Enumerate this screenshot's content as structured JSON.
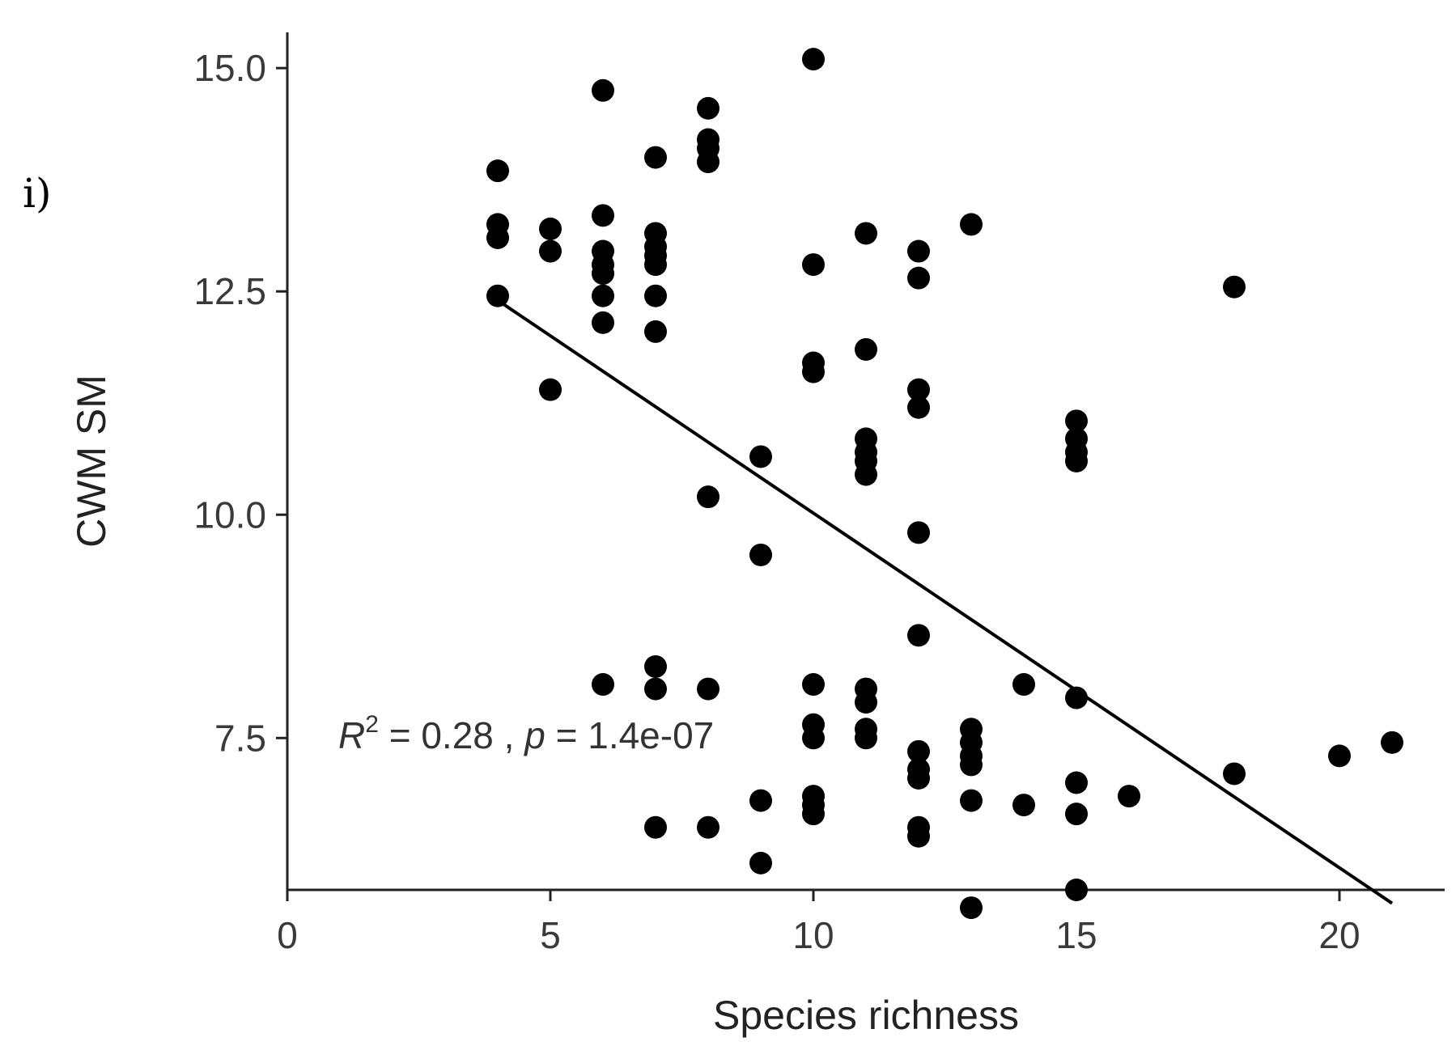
{
  "panel_label": "i)",
  "chart_data": {
    "type": "scatter",
    "xlabel": "Species richness",
    "ylabel": "CWM SM",
    "xlim": [
      0,
      22
    ],
    "ylim": [
      5.8,
      15.4
    ],
    "xticks": [
      0,
      5,
      10,
      15,
      20
    ],
    "xtick_labels": [
      "0",
      "5",
      "10",
      "15",
      "20"
    ],
    "yticks": [
      7.5,
      10.0,
      12.5,
      15.0
    ],
    "ytick_labels": [
      "7.5",
      "10.0",
      "12.5",
      "15.0"
    ],
    "grid": false,
    "points": [
      [
        4,
        13.85
      ],
      [
        4,
        13.25
      ],
      [
        4,
        13.1
      ],
      [
        4,
        12.45
      ],
      [
        5,
        13.2
      ],
      [
        5,
        12.95
      ],
      [
        5,
        11.4
      ],
      [
        6,
        14.75
      ],
      [
        6,
        13.35
      ],
      [
        6,
        12.95
      ],
      [
        6,
        12.8
      ],
      [
        6,
        12.7
      ],
      [
        6,
        12.45
      ],
      [
        6,
        12.15
      ],
      [
        6,
        8.1
      ],
      [
        7,
        14.0
      ],
      [
        7,
        13.15
      ],
      [
        7,
        13.0
      ],
      [
        7,
        12.9
      ],
      [
        7,
        12.8
      ],
      [
        7,
        12.45
      ],
      [
        7,
        12.05
      ],
      [
        7,
        8.3
      ],
      [
        7,
        8.05
      ],
      [
        7,
        6.5
      ],
      [
        8,
        14.55
      ],
      [
        8,
        14.2
      ],
      [
        8,
        14.1
      ],
      [
        8,
        13.95
      ],
      [
        8,
        10.2
      ],
      [
        8,
        8.05
      ],
      [
        8,
        6.5
      ],
      [
        9,
        10.65
      ],
      [
        9,
        9.55
      ],
      [
        9,
        6.8
      ],
      [
        9,
        6.1
      ],
      [
        10,
        15.1
      ],
      [
        10,
        12.8
      ],
      [
        10,
        11.7
      ],
      [
        10,
        11.6
      ],
      [
        10,
        8.1
      ],
      [
        10,
        7.65
      ],
      [
        10,
        7.5
      ],
      [
        10,
        6.85
      ],
      [
        10,
        6.75
      ],
      [
        10,
        6.65
      ],
      [
        11,
        13.15
      ],
      [
        11,
        11.85
      ],
      [
        11,
        10.85
      ],
      [
        11,
        10.7
      ],
      [
        11,
        10.6
      ],
      [
        11,
        10.45
      ],
      [
        11,
        8.05
      ],
      [
        11,
        7.9
      ],
      [
        11,
        7.6
      ],
      [
        11,
        7.5
      ],
      [
        12,
        12.95
      ],
      [
        12,
        12.65
      ],
      [
        12,
        11.4
      ],
      [
        12,
        11.2
      ],
      [
        12,
        9.8
      ],
      [
        12,
        8.65
      ],
      [
        12,
        7.35
      ],
      [
        12,
        7.15
      ],
      [
        12,
        7.05
      ],
      [
        12,
        6.5
      ],
      [
        12,
        6.4
      ],
      [
        13,
        13.25
      ],
      [
        13,
        7.6
      ],
      [
        13,
        7.45
      ],
      [
        13,
        7.3
      ],
      [
        13,
        7.2
      ],
      [
        13,
        6.8
      ],
      [
        13,
        5.6
      ],
      [
        14,
        8.1
      ],
      [
        14,
        6.75
      ],
      [
        15,
        11.05
      ],
      [
        15,
        10.85
      ],
      [
        15,
        10.7
      ],
      [
        15,
        10.6
      ],
      [
        15,
        7.95
      ],
      [
        15,
        7.0
      ],
      [
        15,
        6.65
      ],
      [
        15,
        5.8
      ],
      [
        16,
        6.85
      ],
      [
        18,
        12.55
      ],
      [
        18,
        7.1
      ],
      [
        20,
        7.3
      ],
      [
        21,
        7.45
      ]
    ],
    "fit_line": {
      "x": [
        4,
        21
      ],
      "y": [
        12.4,
        5.65
      ]
    },
    "annotation": {
      "r_symbol": "R",
      "r_superscript": "2",
      "r_value": " = 0.28 , ",
      "p_symbol": "p",
      "p_value": " = 1.4e-07"
    }
  }
}
